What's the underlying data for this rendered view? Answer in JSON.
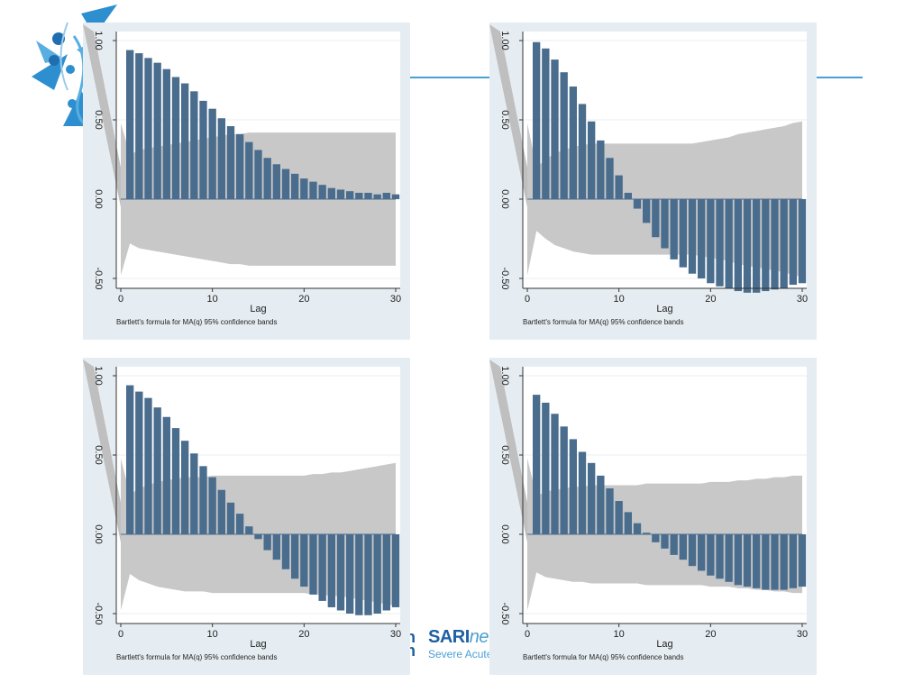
{
  "brand": {
    "partial_line1": "h",
    "partial_line2": "n",
    "name_part1": "SARI",
    "name_part2": "net",
    "subtitle": "Severe Acute"
  },
  "logo": {
    "icon": "virus-starburst-logo-icon"
  },
  "colors": {
    "bar": "#4a6d8e",
    "band": "#c8c8c8",
    "panel_bg": "#e6edf2",
    "plot_bg": "#ffffff",
    "accent": "#4a9fd4"
  },
  "chart_data": [
    {
      "type": "bar",
      "title": "",
      "xlabel": "Lag",
      "note": "Bartlett's formula for MA(q) 95% confidence bands",
      "ylim": [
        -0.5,
        1.0
      ],
      "xlim": [
        0,
        30
      ],
      "yticks": [
        "-0.50",
        "0.00",
        "0.50",
        "1.00"
      ],
      "xticks": [
        "0",
        "10",
        "20",
        "30"
      ],
      "x": [
        1,
        2,
        3,
        4,
        5,
        6,
        7,
        8,
        9,
        10,
        11,
        12,
        13,
        14,
        15,
        16,
        17,
        18,
        19,
        20,
        21,
        22,
        23,
        24,
        25,
        26,
        27,
        28,
        29,
        30
      ],
      "values": [
        0.94,
        0.92,
        0.89,
        0.86,
        0.82,
        0.77,
        0.73,
        0.68,
        0.62,
        0.57,
        0.51,
        0.46,
        0.41,
        0.36,
        0.31,
        0.26,
        0.22,
        0.19,
        0.16,
        0.13,
        0.11,
        0.09,
        0.07,
        0.06,
        0.05,
        0.04,
        0.04,
        0.03,
        0.04,
        0.03
      ],
      "band": [
        0.28,
        0.31,
        0.32,
        0.33,
        0.34,
        0.35,
        0.36,
        0.37,
        0.38,
        0.39,
        0.4,
        0.41,
        0.41,
        0.42,
        0.42,
        0.42,
        0.42,
        0.42,
        0.42,
        0.42,
        0.42,
        0.42,
        0.42,
        0.42,
        0.42,
        0.42,
        0.42,
        0.42,
        0.42,
        0.42
      ]
    },
    {
      "type": "bar",
      "title": "",
      "xlabel": "Lag",
      "note": "Bartlett's formula for MA(q) 95% confidence bands",
      "ylim": [
        -0.5,
        1.0
      ],
      "xlim": [
        0,
        30
      ],
      "yticks": [
        "-0.50",
        "0.00",
        "0.50",
        "1.00"
      ],
      "xticks": [
        "0",
        "10",
        "20",
        "30"
      ],
      "x": [
        1,
        2,
        3,
        4,
        5,
        6,
        7,
        8,
        9,
        10,
        11,
        12,
        13,
        14,
        15,
        16,
        17,
        18,
        19,
        20,
        21,
        22,
        23,
        24,
        25,
        26,
        27,
        28,
        29,
        30
      ],
      "values": [
        0.99,
        0.95,
        0.88,
        0.8,
        0.71,
        0.6,
        0.49,
        0.37,
        0.26,
        0.15,
        0.04,
        -0.06,
        -0.15,
        -0.24,
        -0.31,
        -0.38,
        -0.43,
        -0.47,
        -0.5,
        -0.53,
        -0.55,
        -0.56,
        -0.58,
        -0.59,
        -0.59,
        -0.58,
        -0.57,
        -0.56,
        -0.54,
        -0.53
      ],
      "band": [
        0.2,
        0.25,
        0.29,
        0.31,
        0.33,
        0.34,
        0.35,
        0.35,
        0.35,
        0.35,
        0.35,
        0.35,
        0.35,
        0.35,
        0.35,
        0.35,
        0.35,
        0.35,
        0.36,
        0.37,
        0.38,
        0.39,
        0.41,
        0.42,
        0.43,
        0.44,
        0.45,
        0.46,
        0.48,
        0.49
      ]
    },
    {
      "type": "bar",
      "title": "",
      "xlabel": "Lag",
      "note": "Bartlett's formula for MA(q) 95% confidence bands",
      "ylim": [
        -0.5,
        1.0
      ],
      "xlim": [
        0,
        30
      ],
      "yticks": [
        "-0.50",
        "0.00",
        "0.50",
        "1.00"
      ],
      "xticks": [
        "0",
        "10",
        "20",
        "30"
      ],
      "x": [
        1,
        2,
        3,
        4,
        5,
        6,
        7,
        8,
        9,
        10,
        11,
        12,
        13,
        14,
        15,
        16,
        17,
        18,
        19,
        20,
        21,
        22,
        23,
        24,
        25,
        26,
        27,
        28,
        29,
        30
      ],
      "values": [
        0.94,
        0.9,
        0.86,
        0.8,
        0.74,
        0.67,
        0.59,
        0.51,
        0.43,
        0.36,
        0.28,
        0.2,
        0.13,
        0.05,
        -0.03,
        -0.1,
        -0.16,
        -0.22,
        -0.28,
        -0.33,
        -0.38,
        -0.42,
        -0.46,
        -0.48,
        -0.5,
        -0.51,
        -0.51,
        -0.5,
        -0.48,
        -0.46
      ],
      "band": [
        0.25,
        0.29,
        0.31,
        0.33,
        0.34,
        0.35,
        0.36,
        0.36,
        0.36,
        0.37,
        0.37,
        0.37,
        0.37,
        0.37,
        0.37,
        0.37,
        0.37,
        0.37,
        0.37,
        0.37,
        0.38,
        0.38,
        0.39,
        0.39,
        0.4,
        0.41,
        0.42,
        0.43,
        0.44,
        0.45
      ]
    },
    {
      "type": "bar",
      "title": "",
      "xlabel": "Lag",
      "note": "Bartlett's formula for MA(q) 95% confidence bands",
      "ylim": [
        -0.5,
        1.0
      ],
      "xlim": [
        0,
        30
      ],
      "yticks": [
        "-0.50",
        "0.00",
        "0.50",
        "1.00"
      ],
      "xticks": [
        "0",
        "10",
        "20",
        "30"
      ],
      "x": [
        1,
        2,
        3,
        4,
        5,
        6,
        7,
        8,
        9,
        10,
        11,
        12,
        13,
        14,
        15,
        16,
        17,
        18,
        19,
        20,
        21,
        22,
        23,
        24,
        25,
        26,
        27,
        28,
        29,
        30
      ],
      "values": [
        0.88,
        0.83,
        0.76,
        0.68,
        0.6,
        0.52,
        0.45,
        0.37,
        0.29,
        0.21,
        0.14,
        0.07,
        0.01,
        -0.05,
        -0.09,
        -0.13,
        -0.16,
        -0.2,
        -0.23,
        -0.26,
        -0.28,
        -0.3,
        -0.32,
        -0.33,
        -0.34,
        -0.35,
        -0.35,
        -0.35,
        -0.34,
        -0.33
      ],
      "band": [
        0.24,
        0.27,
        0.28,
        0.29,
        0.3,
        0.3,
        0.31,
        0.31,
        0.31,
        0.31,
        0.31,
        0.31,
        0.32,
        0.32,
        0.32,
        0.32,
        0.32,
        0.32,
        0.32,
        0.33,
        0.33,
        0.33,
        0.34,
        0.34,
        0.35,
        0.35,
        0.36,
        0.36,
        0.37,
        0.37
      ]
    }
  ]
}
